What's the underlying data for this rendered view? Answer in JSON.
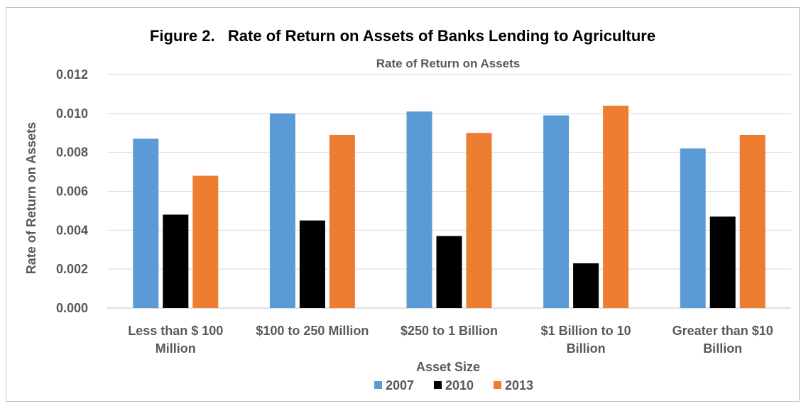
{
  "chart_data": {
    "type": "bar",
    "title": "Figure 2.   Rate of Return on Assets of Banks Lending to Agriculture",
    "subtitle": "Rate of Return on Assets",
    "xlabel": "Asset Size",
    "ylabel": "Rate of Return on Assets",
    "ylim": [
      0,
      0.012
    ],
    "yticks": [
      "0.000",
      "0.002",
      "0.004",
      "0.006",
      "0.008",
      "0.010",
      "0.012"
    ],
    "grid": true,
    "legend_position": "bottom",
    "categories": [
      [
        "Less than $ 100",
        "Million"
      ],
      [
        "$100 to 250 Million"
      ],
      [
        "$250 to 1 Billion"
      ],
      [
        "$1 Billion to 10",
        "Billion"
      ],
      [
        "Greater than $10",
        "Billion"
      ]
    ],
    "series": [
      {
        "name": "2007",
        "color": "#5B9BD5",
        "values": [
          0.0087,
          0.01,
          0.0101,
          0.0099,
          0.0082
        ]
      },
      {
        "name": "2010",
        "color": "#000000",
        "values": [
          0.0048,
          0.0045,
          0.0037,
          0.0023,
          0.0047
        ]
      },
      {
        "name": "2013",
        "color": "#ED7D31",
        "values": [
          0.0068,
          0.0089,
          0.009,
          0.0104,
          0.0089
        ]
      }
    ]
  }
}
